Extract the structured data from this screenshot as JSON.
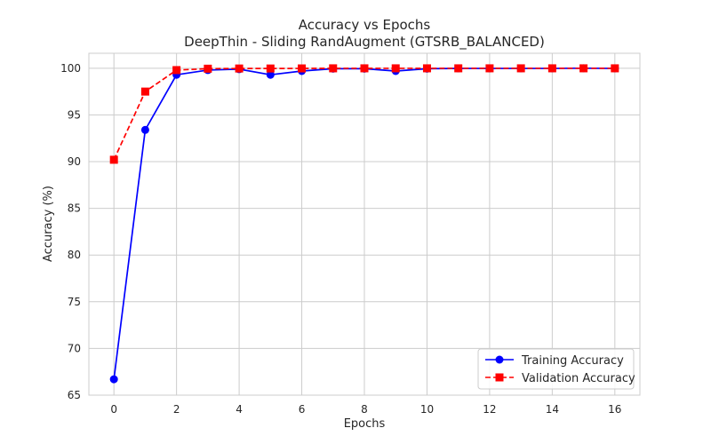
{
  "chart_data": {
    "type": "line",
    "title": "Accuracy vs Epochs",
    "subtitle": "DeepThin - Sliding RandAugment (GTSRB_BALANCED)",
    "xlabel": "Epochs",
    "ylabel": "Accuracy (%)",
    "xlim": [
      -0.8,
      16.8
    ],
    "ylim": [
      65,
      101.6
    ],
    "xticks": [
      "0",
      "2",
      "4",
      "6",
      "8",
      "10",
      "12",
      "14",
      "16"
    ],
    "yticks": [
      "65",
      "70",
      "75",
      "80",
      "85",
      "90",
      "95",
      "100"
    ],
    "grid": true,
    "legend_position": "bottom-right",
    "x": [
      0,
      1,
      2,
      3,
      4,
      5,
      6,
      7,
      8,
      9,
      10,
      11,
      12,
      13,
      14,
      15,
      16
    ],
    "series": [
      {
        "name": "Training Accuracy",
        "color": "#0000ff",
        "line_style": "solid",
        "marker": "circle",
        "values": [
          66.7,
          93.4,
          99.3,
          99.8,
          99.9,
          99.3,
          99.7,
          99.95,
          99.95,
          99.7,
          99.95,
          99.98,
          99.98,
          99.98,
          99.98,
          100.0,
          99.98
        ]
      },
      {
        "name": "Validation Accuracy",
        "color": "#ff0000",
        "line_style": "dashed",
        "marker": "square",
        "values": [
          90.2,
          97.5,
          99.8,
          99.95,
          99.97,
          99.97,
          99.98,
          99.99,
          99.99,
          99.99,
          99.99,
          99.99,
          99.99,
          99.99,
          99.99,
          99.99,
          99.99
        ]
      }
    ]
  }
}
